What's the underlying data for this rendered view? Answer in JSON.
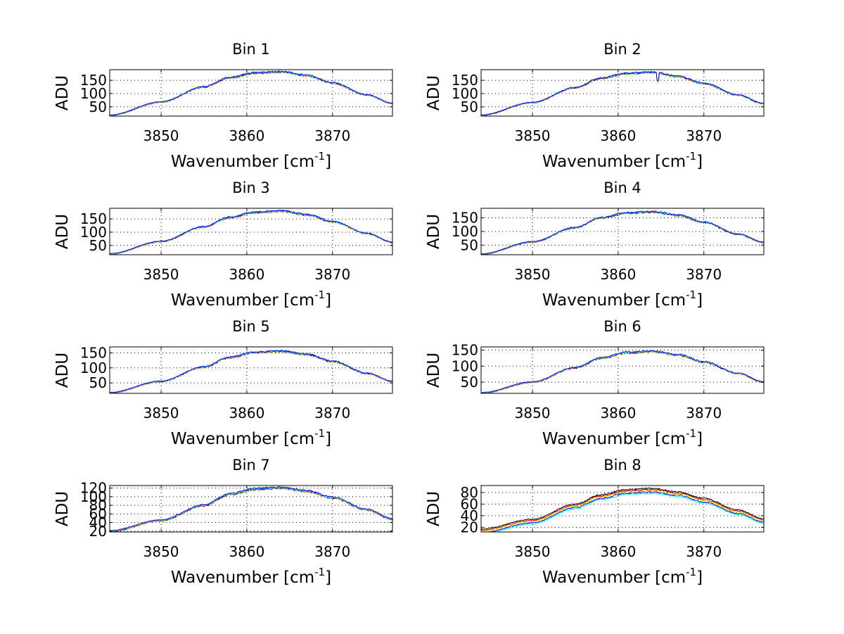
{
  "figure": {
    "background": "#ffffff"
  },
  "chart_data": [
    {
      "type": "line",
      "title": "Bin 1",
      "xlabel": "Wavenumber [cm",
      "xlabel_sup": "-1",
      "xlabel_end": "]",
      "ylabel": "ADU",
      "xlim": [
        3844,
        3877
      ],
      "ylim": [
        15,
        190
      ],
      "xticks": [
        3850,
        3860,
        3870
      ],
      "xtick_labels": [
        "3850",
        "3860",
        "3870"
      ],
      "yticks": [
        50,
        100,
        150
      ],
      "ytick_labels": [
        "50",
        "100",
        "150"
      ],
      "grid": true,
      "profile": {
        "x": [
          3844,
          3850,
          3855,
          3858,
          3861,
          3864,
          3867,
          3870,
          3874,
          3877
        ],
        "y": [
          18,
          68,
          125,
          160,
          178,
          182,
          168,
          140,
          95,
          63
        ]
      },
      "series_colors": [
        "#000000",
        "#ff0000",
        "#ffff00",
        "#00ffff",
        "#0000ff"
      ]
    },
    {
      "type": "line",
      "title": "Bin 2",
      "xlabel": "Wavenumber [cm",
      "xlabel_sup": "-1",
      "xlabel_end": "]",
      "ylabel": "ADU",
      "xlim": [
        3844,
        3877
      ],
      "ylim": [
        15,
        190
      ],
      "xticks": [
        3850,
        3860,
        3870
      ],
      "xtick_labels": [
        "3850",
        "3860",
        "3870"
      ],
      "yticks": [
        50,
        100,
        150
      ],
      "ytick_labels": [
        "50",
        "100",
        "150"
      ],
      "grid": true,
      "profile": {
        "x": [
          3844,
          3850,
          3855,
          3858,
          3861,
          3864,
          3867,
          3870,
          3874,
          3877
        ],
        "y": [
          18,
          66,
          122,
          158,
          176,
          180,
          165,
          138,
          94,
          62
        ]
      },
      "series_colors": [
        "#000000",
        "#ff0000",
        "#ffff00",
        "#00ffff",
        "#0000ff"
      ]
    },
    {
      "type": "line",
      "title": "Bin 3",
      "xlabel": "Wavenumber [cm",
      "xlabel_sup": "-1",
      "xlabel_end": "]",
      "ylabel": "ADU",
      "xlim": [
        3844,
        3877
      ],
      "ylim": [
        15,
        190
      ],
      "xticks": [
        3850,
        3860,
        3870
      ],
      "xtick_labels": [
        "3850",
        "3860",
        "3870"
      ],
      "yticks": [
        50,
        100,
        150
      ],
      "ytick_labels": [
        "50",
        "100",
        "150"
      ],
      "grid": true,
      "profile": {
        "x": [
          3844,
          3850,
          3855,
          3858,
          3861,
          3864,
          3867,
          3870,
          3874,
          3877
        ],
        "y": [
          18,
          65,
          120,
          156,
          175,
          180,
          166,
          140,
          95,
          62
        ]
      },
      "series_colors": [
        "#000000",
        "#ff0000",
        "#ffff00",
        "#00ffff",
        "#0000ff"
      ]
    },
    {
      "type": "line",
      "title": "Bin 4",
      "xlabel": "Wavenumber [cm",
      "xlabel_sup": "-1",
      "xlabel_end": "]",
      "ylabel": "ADU",
      "xlim": [
        3844,
        3877
      ],
      "ylim": [
        15,
        185
      ],
      "xticks": [
        3850,
        3860,
        3870
      ],
      "xtick_labels": [
        "3850",
        "3860",
        "3870"
      ],
      "yticks": [
        50,
        100,
        150
      ],
      "ytick_labels": [
        "50",
        "100",
        "150"
      ],
      "grid": true,
      "profile": {
        "x": [
          3844,
          3850,
          3855,
          3858,
          3861,
          3864,
          3867,
          3870,
          3874,
          3877
        ],
        "y": [
          17,
          62,
          114,
          150,
          168,
          172,
          160,
          134,
          90,
          60
        ]
      },
      "series_colors": [
        "#000000",
        "#ff0000",
        "#ffff00",
        "#00ffff",
        "#0000ff"
      ]
    },
    {
      "type": "line",
      "title": "Bin 5",
      "xlabel": "Wavenumber [cm",
      "xlabel_sup": "-1",
      "xlabel_end": "]",
      "ylabel": "ADU",
      "xlim": [
        3844,
        3877
      ],
      "ylim": [
        15,
        170
      ],
      "xticks": [
        3850,
        3860,
        3870
      ],
      "xtick_labels": [
        "3850",
        "3860",
        "3870"
      ],
      "yticks": [
        50,
        100,
        150
      ],
      "ytick_labels": [
        "50",
        "100",
        "150"
      ],
      "grid": true,
      "profile": {
        "x": [
          3844,
          3850,
          3855,
          3858,
          3861,
          3864,
          3867,
          3870,
          3874,
          3877
        ],
        "y": [
          17,
          55,
          103,
          135,
          152,
          156,
          145,
          122,
          82,
          55
        ]
      },
      "series_colors": [
        "#000000",
        "#ff0000",
        "#ffff00",
        "#00ffff",
        "#0000ff"
      ]
    },
    {
      "type": "line",
      "title": "Bin 6",
      "xlabel": "Wavenumber [cm",
      "xlabel_sup": "-1",
      "xlabel_end": "]",
      "ylabel": "ADU",
      "xlim": [
        3844,
        3877
      ],
      "ylim": [
        15,
        160
      ],
      "xticks": [
        3850,
        3860,
        3870
      ],
      "xtick_labels": [
        "3850",
        "3860",
        "3870"
      ],
      "yticks": [
        50,
        100,
        150
      ],
      "ytick_labels": [
        "50",
        "100",
        "150"
      ],
      "grid": true,
      "profile": {
        "x": [
          3844,
          3850,
          3855,
          3858,
          3861,
          3864,
          3867,
          3870,
          3874,
          3877
        ],
        "y": [
          16,
          50,
          95,
          125,
          142,
          146,
          135,
          113,
          77,
          50
        ]
      },
      "series_colors": [
        "#000000",
        "#ff0000",
        "#ffff00",
        "#00ffff",
        "#0000ff"
      ]
    },
    {
      "type": "line",
      "title": "Bin 7",
      "xlabel": "Wavenumber [cm",
      "xlabel_sup": "-1",
      "xlabel_end": "]",
      "ylabel": "ADU",
      "xlim": [
        3844,
        3877
      ],
      "ylim": [
        18,
        126
      ],
      "xticks": [
        3850,
        3860,
        3870
      ],
      "xtick_labels": [
        "3850",
        "3860",
        "3870"
      ],
      "yticks": [
        20,
        40,
        60,
        80,
        100,
        120
      ],
      "ytick_labels": [
        "20",
        "40",
        "60",
        "80",
        "100",
        "120"
      ],
      "ytick_note": "labels overlap in original rendering",
      "grid": true,
      "profile": {
        "x": [
          3844,
          3850,
          3855,
          3858,
          3861,
          3864,
          3867,
          3870,
          3874,
          3877
        ],
        "y": [
          20,
          45,
          80,
          106,
          118,
          121,
          113,
          98,
          70,
          48
        ]
      },
      "series_colors": [
        "#000000",
        "#ff0000",
        "#ffff00",
        "#00ffff",
        "#0000ff"
      ]
    },
    {
      "type": "line",
      "title": "Bin 8",
      "xlabel": "Wavenumber [cm",
      "xlabel_sup": "-1",
      "xlabel_end": "]",
      "ylabel": "ADU",
      "xlim": [
        3844,
        3877
      ],
      "ylim": [
        12,
        92
      ],
      "xticks": [
        3850,
        3860,
        3870
      ],
      "xtick_labels": [
        "3850",
        "3860",
        "3870"
      ],
      "yticks": [
        20,
        40,
        60,
        80
      ],
      "ytick_labels": [
        "20",
        "40",
        "60",
        "80"
      ],
      "grid": true,
      "profile": {
        "x": [
          3844,
          3850,
          3855,
          3858,
          3861,
          3864,
          3867,
          3870,
          3874,
          3877
        ],
        "y": [
          13,
          30,
          56,
          72,
          81,
          83,
          77,
          66,
          46,
          31
        ]
      },
      "series_colors": [
        "#00ffff",
        "#0000ff",
        "#ffff00",
        "#ff0000",
        "#000000"
      ],
      "series_spread": 4
    }
  ]
}
